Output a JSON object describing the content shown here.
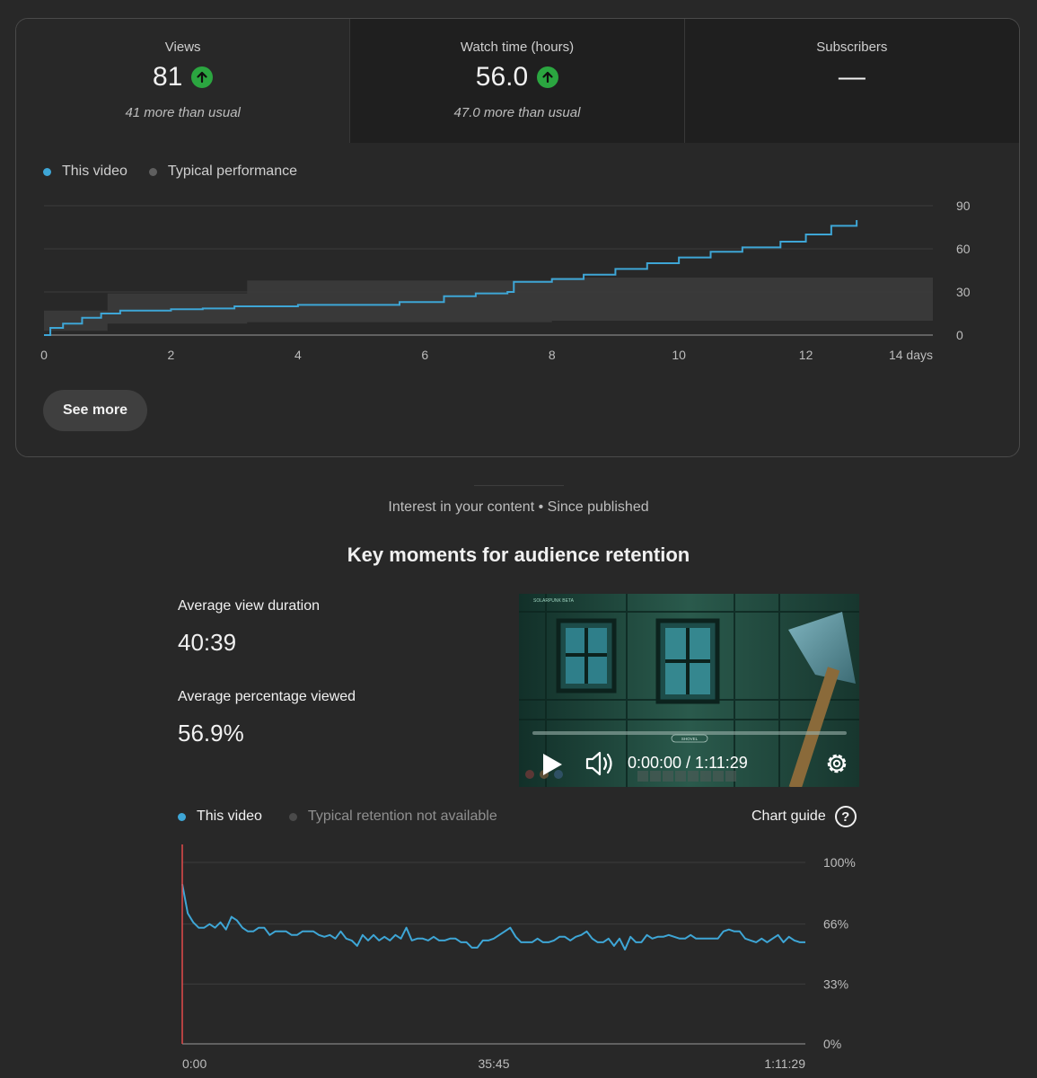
{
  "metrics": [
    {
      "label": "Views",
      "value": "81",
      "note": "41 more than usual",
      "trend": "up"
    },
    {
      "label": "Watch time (hours)",
      "value": "56.0",
      "note": "47.0 more than usual",
      "trend": "up"
    },
    {
      "label": "Subscribers",
      "value": "—",
      "note": "",
      "trend": "none"
    }
  ],
  "performance_legend": {
    "this_video": "This video",
    "typical": "Typical performance"
  },
  "see_more_label": "See more",
  "retention": {
    "subtitle": "Interest in your content • Since published",
    "title": "Key moments for audience retention",
    "avg_view_duration_label": "Average view duration",
    "avg_view_duration": "40:39",
    "avg_pct_viewed_label": "Average percentage viewed",
    "avg_pct_viewed": "56.9%",
    "legend_this_video": "This video",
    "legend_typical": "Typical retention not available",
    "chart_guide_label": "Chart guide"
  },
  "player": {
    "time_display": "0:00:00 / 1:11:29",
    "hud_title": "SOLARPUNK BETA",
    "hud_prompt": "SHOVEL"
  },
  "colors": {
    "accent": "#3ea6d6",
    "up_green": "#2ba640",
    "typical_band": "#3a3a3a",
    "playhead": "#e24a4a"
  },
  "chart_data": [
    {
      "type": "line",
      "title": "Views",
      "x_unit": "days",
      "xlim": [
        0,
        14
      ],
      "ylim": [
        0,
        90
      ],
      "x_ticks": [
        "0",
        "2",
        "4",
        "6",
        "8",
        "10",
        "12",
        "14 days"
      ],
      "y_ticks": [
        "0",
        "30",
        "60",
        "90"
      ],
      "series": [
        {
          "name": "This video",
          "x": [
            0,
            0.1,
            0.3,
            0.6,
            0.9,
            1.2,
            2.0,
            2.5,
            3.0,
            4.0,
            5.3,
            5.6,
            6.3,
            6.8,
            7.3,
            7.4,
            8.0,
            8.5,
            9.0,
            9.5,
            10.0,
            10.5,
            11.0,
            11.6,
            12.0,
            12.4,
            12.8
          ],
          "y": [
            0,
            5,
            8,
            12,
            15,
            17,
            18,
            18.5,
            20,
            21,
            21,
            23,
            27,
            29,
            30,
            37,
            39,
            42,
            46,
            50,
            54,
            58,
            61,
            65,
            70,
            76,
            80
          ]
        },
        {
          "name": "Typical performance",
          "band_x": [
            0,
            1.0,
            3.2,
            8.0,
            14
          ],
          "band_low": [
            0,
            3,
            8,
            9,
            10
          ],
          "band_high": [
            2,
            17,
            29,
            38,
            40
          ]
        }
      ]
    },
    {
      "type": "line",
      "title": "Audience retention",
      "x_unit": "seconds",
      "xlim": [
        0,
        4289
      ],
      "ylim": [
        0,
        100
      ],
      "x_ticks": [
        "0:00",
        "35:45",
        "1:11:29"
      ],
      "y_ticks": [
        "0%",
        "33%",
        "66%",
        "100%"
      ],
      "series": [
        {
          "name": "This video",
          "y": [
            88,
            72,
            67,
            64,
            64,
            66,
            64,
            67,
            63,
            70,
            68,
            64,
            62,
            62,
            64,
            64,
            60,
            62,
            62,
            62,
            60,
            60,
            62,
            62,
            62,
            60,
            59,
            60,
            58,
            62,
            58,
            57,
            54,
            60,
            57,
            60,
            57,
            59,
            57,
            60,
            58,
            64,
            57,
            58,
            58,
            57,
            59,
            57,
            57,
            58,
            58,
            56,
            56,
            53,
            53,
            57,
            57,
            58,
            60,
            62,
            64,
            59,
            56,
            56,
            56,
            58,
            56,
            56,
            57,
            59,
            59,
            57,
            59,
            60,
            62,
            58,
            56,
            56,
            58,
            54,
            58,
            52,
            59,
            56,
            56,
            60,
            58,
            59,
            59,
            60,
            59,
            58,
            58,
            60,
            58,
            58,
            58,
            58,
            58,
            62,
            63,
            62,
            62,
            58,
            57,
            56,
            58,
            56,
            58,
            60,
            56,
            59,
            57,
            56,
            56
          ],
          "x_fraction_step": "uniform"
        }
      ]
    }
  ]
}
